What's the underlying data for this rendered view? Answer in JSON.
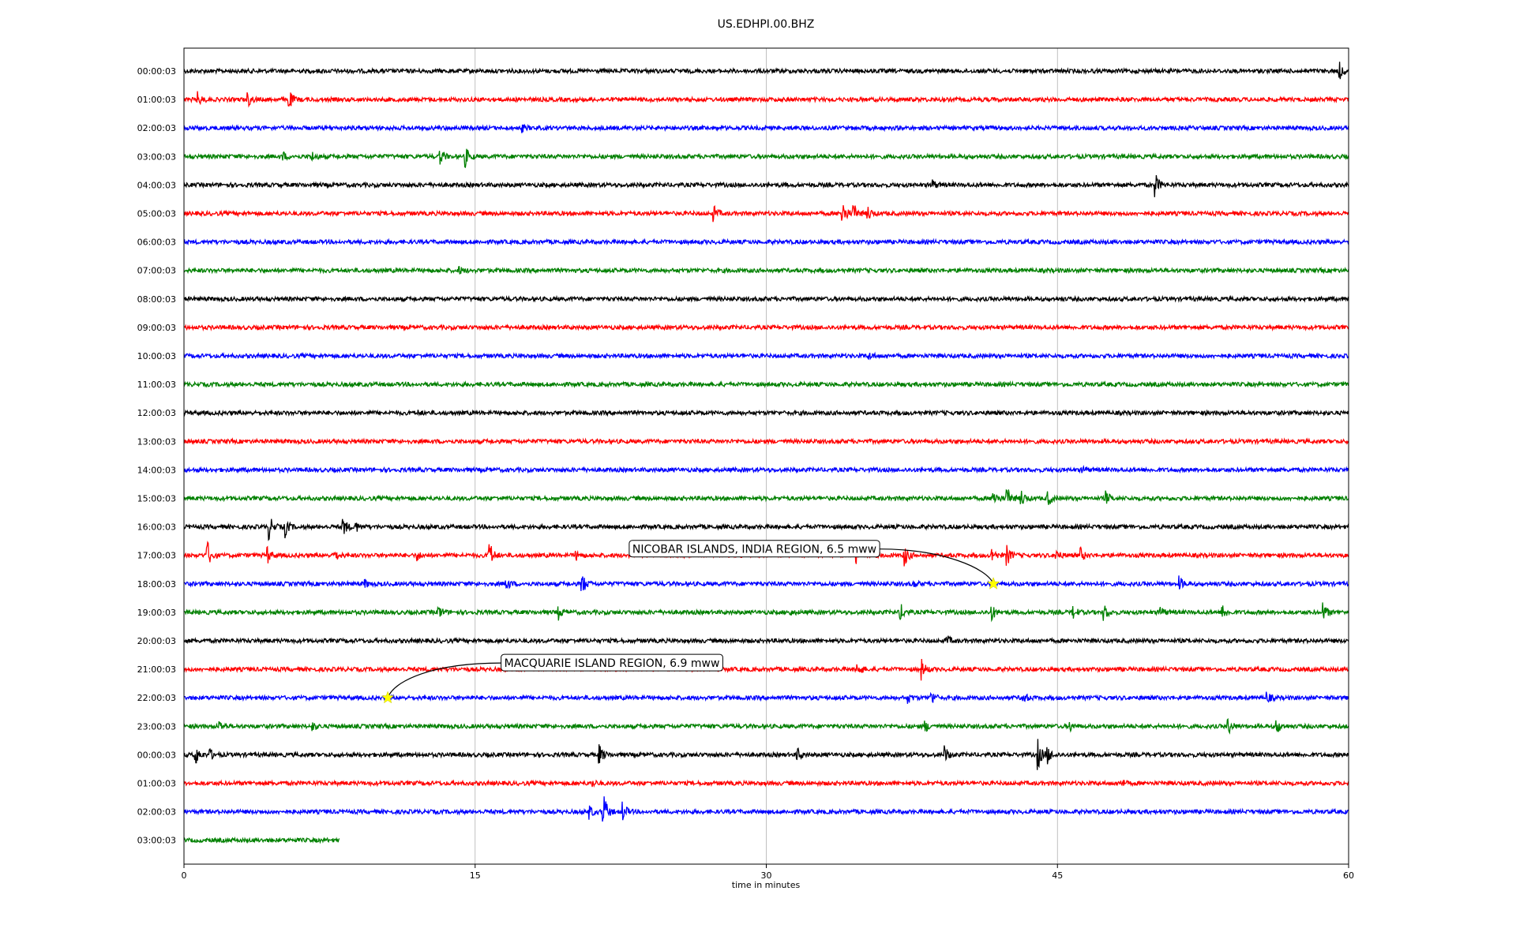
{
  "chart_data": {
    "type": "line",
    "title": "US.EDHPI.00.BHZ",
    "xlabel": "time in minutes",
    "xlim": [
      0,
      60
    ],
    "x_ticks": [
      0,
      15,
      30,
      45,
      60
    ],
    "x_tick_labels": [
      "0",
      "15",
      "30",
      "45",
      "60"
    ],
    "grid": "vertical",
    "colors": [
      "#000000",
      "#ff0000",
      "#0000ff",
      "#008000"
    ],
    "rows": [
      {
        "label": "00:00:03",
        "color": "#000000",
        "events": [
          [
            59.5,
            12
          ]
        ]
      },
      {
        "label": "01:00:03",
        "color": "#ff0000",
        "events": [
          [
            0.7,
            8
          ],
          [
            3.3,
            8
          ],
          [
            5.4,
            12
          ]
        ]
      },
      {
        "label": "02:00:03",
        "color": "#0000ff",
        "events": [
          [
            17.4,
            4
          ]
        ]
      },
      {
        "label": "03:00:03",
        "color": "#008000",
        "events": [
          [
            5.1,
            5
          ],
          [
            6.6,
            5
          ],
          [
            13.2,
            10
          ],
          [
            14.5,
            12
          ]
        ]
      },
      {
        "label": "04:00:03",
        "color": "#000000",
        "events": [
          [
            38.5,
            8
          ],
          [
            50.0,
            18
          ]
        ]
      },
      {
        "label": "05:00:03",
        "color": "#ff0000",
        "events": [
          [
            27.3,
            9
          ],
          [
            33.9,
            20
          ],
          [
            34.5,
            12
          ],
          [
            35.2,
            10
          ]
        ]
      },
      {
        "label": "06:00:03",
        "color": "#0000ff",
        "events": []
      },
      {
        "label": "07:00:03",
        "color": "#008000",
        "events": [
          [
            14.2,
            4
          ]
        ]
      },
      {
        "label": "08:00:03",
        "color": "#000000",
        "events": []
      },
      {
        "label": "09:00:03",
        "color": "#ff0000",
        "events": []
      },
      {
        "label": "10:00:03",
        "color": "#0000ff",
        "events": [
          [
            35.3,
            4
          ]
        ]
      },
      {
        "label": "11:00:03",
        "color": "#008000",
        "events": []
      },
      {
        "label": "12:00:03",
        "color": "#000000",
        "events": [
          [
            12.0,
            3
          ]
        ]
      },
      {
        "label": "13:00:03",
        "color": "#ff0000",
        "events": []
      },
      {
        "label": "14:00:03",
        "color": "#0000ff",
        "events": [
          [
            46.3,
            4
          ]
        ]
      },
      {
        "label": "15:00:03",
        "color": "#008000",
        "events": [
          [
            41.7,
            12
          ],
          [
            42.4,
            14
          ],
          [
            43.1,
            12
          ],
          [
            44.5,
            10
          ],
          [
            47.5,
            8
          ]
        ]
      },
      {
        "label": "16:00:03",
        "color": "#000000",
        "events": [
          [
            4.4,
            14
          ],
          [
            5.2,
            12
          ],
          [
            8.2,
            12
          ],
          [
            8.8,
            8
          ]
        ]
      },
      {
        "label": "17:00:03",
        "color": "#ff0000",
        "events": [
          [
            1.2,
            18
          ],
          [
            4.3,
            10
          ],
          [
            7.7,
            10
          ],
          [
            12.0,
            6
          ],
          [
            15.7,
            22
          ],
          [
            20.2,
            5
          ],
          [
            34.6,
            14
          ],
          [
            37.1,
            14
          ],
          [
            41.6,
            10
          ],
          [
            42.4,
            12
          ],
          [
            44.9,
            8
          ],
          [
            46.2,
            8
          ]
        ]
      },
      {
        "label": "18:00:03",
        "color": "#0000ff",
        "events": [
          [
            9.3,
            5
          ],
          [
            16.6,
            8
          ],
          [
            20.5,
            14
          ],
          [
            37.6,
            4
          ],
          [
            51.3,
            8
          ]
        ]
      },
      {
        "label": "19:00:03",
        "color": "#008000",
        "events": [
          [
            13.1,
            9
          ],
          [
            19.3,
            8
          ],
          [
            31.2,
            3
          ],
          [
            36.9,
            11
          ],
          [
            41.6,
            10
          ],
          [
            45.8,
            8
          ],
          [
            47.4,
            11
          ],
          [
            50.3,
            7
          ],
          [
            53.5,
            10
          ],
          [
            58.7,
            11
          ]
        ]
      },
      {
        "label": "20:00:03",
        "color": "#000000",
        "events": [
          [
            39.3,
            6
          ]
        ]
      },
      {
        "label": "21:00:03",
        "color": "#ff0000",
        "events": [
          [
            34.7,
            10
          ],
          [
            38.0,
            12
          ]
        ]
      },
      {
        "label": "22:00:03",
        "color": "#0000ff",
        "events": [
          [
            37.3,
            6
          ],
          [
            38.5,
            9
          ],
          [
            43.2,
            8
          ],
          [
            55.8,
            6
          ]
        ]
      },
      {
        "label": "23:00:03",
        "color": "#008000",
        "events": [
          [
            1.8,
            7
          ],
          [
            6.6,
            5
          ],
          [
            38.2,
            6
          ],
          [
            45.6,
            7
          ],
          [
            53.8,
            10
          ],
          [
            56.3,
            9
          ]
        ]
      },
      {
        "label": "00:00:03",
        "color": "#000000",
        "events": [
          [
            0.6,
            12
          ],
          [
            1.3,
            8
          ],
          [
            21.4,
            12
          ],
          [
            31.6,
            8
          ],
          [
            39.2,
            10
          ],
          [
            44.0,
            18
          ],
          [
            44.5,
            10
          ]
        ]
      },
      {
        "label": "01:00:03",
        "color": "#ff0000",
        "events": [
          [
            21.0,
            5
          ],
          [
            48.3,
            4
          ]
        ]
      },
      {
        "label": "02:00:03",
        "color": "#0000ff",
        "events": [
          [
            20.9,
            8
          ],
          [
            21.6,
            25
          ],
          [
            22.6,
            12
          ]
        ]
      },
      {
        "label": "03:00:03",
        "color": "#008000",
        "end_minute": 8.0,
        "events": []
      }
    ],
    "annotations": [
      {
        "text": "NICOBAR ISLANDS, INDIA REGION, 6.5 mww",
        "row": 18,
        "minute": 41.7,
        "label_minute": 23.1,
        "label_row": 17,
        "marker": "star",
        "marker_color": "#ffff00"
      },
      {
        "text": "MACQUARIE ISLAND REGION, 6.9 mww",
        "row": 22,
        "minute": 10.5,
        "label_minute": 16.5,
        "label_row": 21,
        "marker": "star",
        "marker_color": "#ffff00"
      }
    ]
  }
}
